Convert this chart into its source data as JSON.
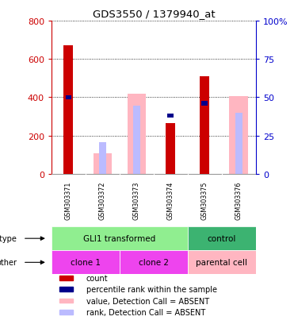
{
  "title": "GDS3550 / 1379940_at",
  "samples": [
    "GSM303371",
    "GSM303372",
    "GSM303373",
    "GSM303374",
    "GSM303375",
    "GSM303376"
  ],
  "count_values": [
    670,
    0,
    0,
    265,
    510,
    0
  ],
  "percentile_values": [
    50,
    0,
    0,
    38,
    46,
    0
  ],
  "absent_value_bars": [
    0,
    105,
    420,
    0,
    0,
    405
  ],
  "absent_rank_bars": [
    0,
    165,
    355,
    0,
    0,
    320
  ],
  "left_ylim": [
    0,
    800
  ],
  "right_ylim": [
    0,
    100
  ],
  "left_yticks": [
    0,
    200,
    400,
    600,
    800
  ],
  "right_yticks": [
    0,
    25,
    50,
    75,
    100
  ],
  "right_yticklabels": [
    "0",
    "25",
    "50",
    "75",
    "100%"
  ],
  "cell_type_labels": [
    {
      "text": "GLI1 transformed",
      "span": [
        0,
        4
      ],
      "color": "#90EE90"
    },
    {
      "text": "control",
      "span": [
        4,
        6
      ],
      "color": "#3CB371"
    }
  ],
  "other_labels": [
    {
      "text": "clone 1",
      "span": [
        0,
        2
      ],
      "color": "#EE44EE"
    },
    {
      "text": "clone 2",
      "span": [
        2,
        4
      ],
      "color": "#EE44EE"
    },
    {
      "text": "parental cell",
      "span": [
        4,
        6
      ],
      "color": "#FFB6C1"
    }
  ],
  "count_color": "#CC0000",
  "percentile_color": "#00008B",
  "absent_value_color": "#FFB6C1",
  "absent_rank_color": "#BBBBFF",
  "background_color": "#FFFFFF",
  "left_axis_color": "#CC0000",
  "right_axis_color": "#0000CC",
  "sample_area_color": "#C8C8C8",
  "legend_items": [
    {
      "label": "count",
      "color": "#CC0000"
    },
    {
      "label": "percentile rank within the sample",
      "color": "#00008B"
    },
    {
      "label": "value, Detection Call = ABSENT",
      "color": "#FFB6C1"
    },
    {
      "label": "rank, Detection Call = ABSENT",
      "color": "#BBBBFF"
    }
  ]
}
